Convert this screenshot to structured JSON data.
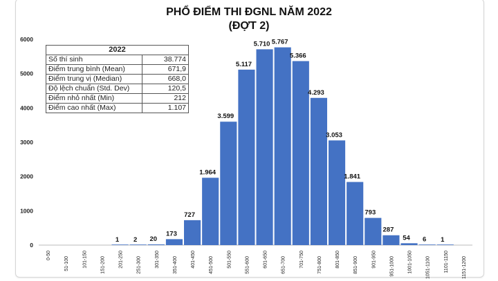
{
  "chart_data": {
    "type": "bar",
    "title": "PHỔ ĐIỂM THI ĐGNL NĂM 2022",
    "subtitle": "(ĐỢT 2)",
    "categories": [
      "0-50",
      "51-100",
      "101-150",
      "151-200",
      "201-250",
      "251-300",
      "301-350",
      "351-400",
      "401-450",
      "451-500",
      "501-550",
      "551-600",
      "601-650",
      "651-700",
      "701-750",
      "751-800",
      "801-850",
      "851-900",
      "901-950",
      "951-1000",
      "1001-1050",
      "1051-1100",
      "1101-1150",
      "1151-1200"
    ],
    "values": [
      0,
      0,
      0,
      0,
      1,
      2,
      20,
      173,
      727,
      1964,
      3599,
      5117,
      5710,
      5767,
      5366,
      4293,
      3053,
      1841,
      793,
      287,
      54,
      6,
      1,
      0
    ],
    "data_labels": [
      "",
      "",
      "",
      "",
      "1",
      "2",
      "20",
      "173",
      "727",
      "1.964",
      "3.599",
      "5.117",
      "5.710",
      "5.767",
      "5.366",
      "4.293",
      "3.053",
      "1.841",
      "793",
      "287",
      "54",
      "6",
      "1",
      ""
    ],
    "ylim": [
      0,
      6000
    ],
    "yticks": [
      0,
      1000,
      2000,
      3000,
      4000,
      5000,
      6000
    ],
    "xlabel": "",
    "ylabel": "",
    "grid": false,
    "bar_color": "#4472C4",
    "stats_table": {
      "header": "2022",
      "rows": [
        {
          "label": "Số thí sinh",
          "value": "38.774"
        },
        {
          "label": "Điểm trung bình (Mean)",
          "value": "671,9"
        },
        {
          "label": "Điểm trung vị (Median)",
          "value": "668,0"
        },
        {
          "label": "Độ lệch chuẩn (Std. Dev)",
          "value": "120,5"
        },
        {
          "label": "Điểm nhỏ nhất (Min)",
          "value": "212"
        },
        {
          "label": "Điểm cao nhất (Max)",
          "value": "1.107"
        }
      ]
    }
  }
}
